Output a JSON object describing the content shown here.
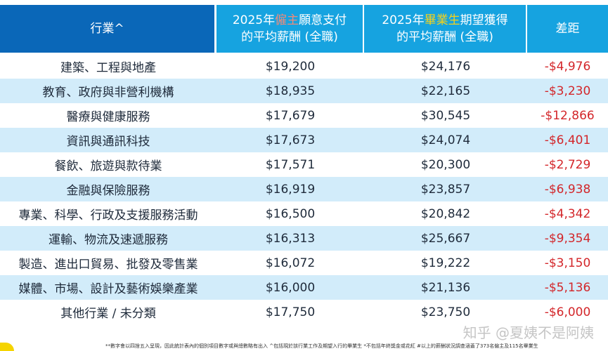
{
  "header": {
    "industry": "行業^",
    "employer_prefix": "2025年",
    "employer_highlight": "僱主",
    "employer_suffix": "願意支付",
    "employer_line2": "的平均薪酬 (全職)",
    "graduate_prefix": "2025年",
    "graduate_highlight": "畢業生",
    "graduate_suffix": "期望獲得",
    "graduate_line2": "的平均薪酬 (全職)",
    "gap": "差距"
  },
  "rows": [
    {
      "industry": "建築、工程與地產",
      "employer": "$19,200",
      "graduate": "$24,176",
      "gap": "-$4,976"
    },
    {
      "industry": "教育、政府與非營利機構",
      "employer": "$18,935",
      "graduate": "$22,165",
      "gap": "-$3,230"
    },
    {
      "industry": "醫療與健康服務",
      "employer": "$17,679",
      "graduate": "$30,545",
      "gap": "-$12,866"
    },
    {
      "industry": "資訊與通訊科技",
      "employer": "$17,673",
      "graduate": "$24,074",
      "gap": "-$6,401"
    },
    {
      "industry": "餐飲、旅遊與款待業",
      "employer": "$17,571",
      "graduate": "$20,300",
      "gap": "-$2,729"
    },
    {
      "industry": "金融與保險服務",
      "employer": "$16,919",
      "graduate": "$23,857",
      "gap": "-$6,938"
    },
    {
      "industry": "專業、科學、行政及支援服務活動",
      "employer": "$16,500",
      "graduate": "$20,842",
      "gap": "-$4,342"
    },
    {
      "industry": "運輸、物流及速遞服務",
      "employer": "$16,313",
      "graduate": "$25,667",
      "gap": "-$9,354"
    },
    {
      "industry": "製造、進出口貿易、批發及零售業",
      "employer": "$16,072",
      "graduate": "$19,222",
      "gap": "-$3,150"
    },
    {
      "industry": "媒體、市場、設計及藝術娛樂產業",
      "employer": "$16,000",
      "graduate": "$21,136",
      "gap": "-$5,136"
    },
    {
      "industry": "其他行業 / 未分類",
      "employer": "$17,750",
      "graduate": "$23,750",
      "gap": "-$6,000"
    }
  ],
  "footnote": "**數字會以四捨五入呈現，因此統計表內的個別項目數字或與總數略有出入  ^包括現於該行業工作及期望入行的畢業生  *不包括年終獎金或花紅  #以上的薪酬狀況調查涵蓋了373名僱主及115名畢業生",
  "watermark": "知乎 @夏姨不是阿姨",
  "colors": {
    "header_dark": "#0a67b8",
    "header_light": "#16a3e0",
    "row_alt": "#d2ecfa",
    "gap_red": "#d3262a",
    "employer_highlight": "#f08a7a",
    "graduate_highlight": "#f7d21a"
  }
}
